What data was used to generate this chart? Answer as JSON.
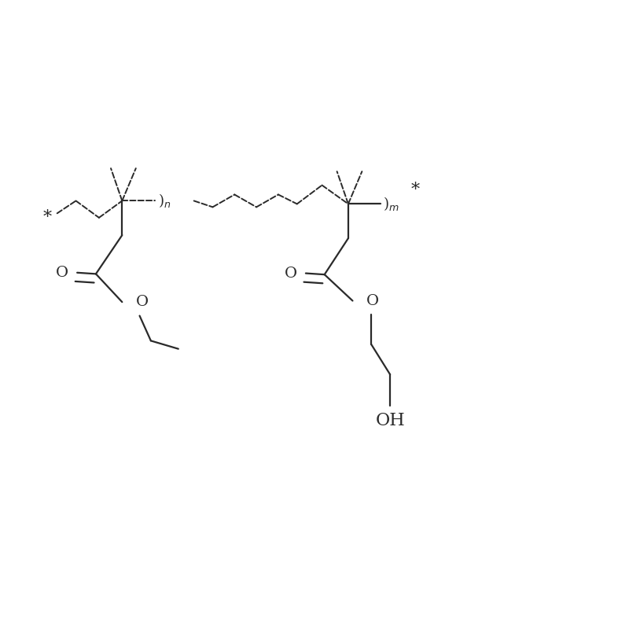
{
  "bg_color": "#ffffff",
  "line_color": "#2a2a2a",
  "line_width": 1.6,
  "dashed_lw": 1.4,
  "text_color": "#2a2a2a",
  "font_size": 13,
  "fig_width": 8.0,
  "fig_height": 8.0,
  "xlim": [
    0,
    10
  ],
  "ylim": [
    0,
    10
  ]
}
